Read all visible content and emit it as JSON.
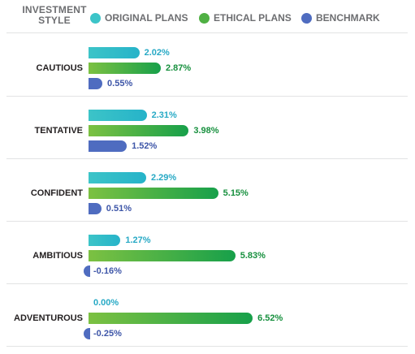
{
  "chart_data": {
    "type": "bar",
    "orientation": "horizontal",
    "header": "INVESTMENT STYLE",
    "categories": [
      "CAUTIOUS",
      "TENTATIVE",
      "CONFIDENT",
      "AMBITIOUS",
      "ADVENTUROUS"
    ],
    "series": [
      {
        "name": "ORIGINAL PLANS",
        "color": "#3cc4c8",
        "color_end": "#26b3c9",
        "label_color": "#27a9c5",
        "values": [
          2.02,
          2.31,
          2.29,
          1.27,
          0.0
        ],
        "labels": [
          "2.02%",
          "2.31%",
          "2.29%",
          "1.27%",
          "0.00%"
        ]
      },
      {
        "name": "ETHICAL PLANS",
        "color": "#7cc142",
        "color_end": "#17a04a",
        "label_color": "#17903e",
        "values": [
          2.87,
          3.98,
          5.15,
          5.83,
          6.52
        ],
        "labels": [
          "2.87%",
          "3.98%",
          "5.15%",
          "5.83%",
          "6.52%"
        ]
      },
      {
        "name": "BENCHMARK",
        "color": "#4f6cc0",
        "color_end": "#4f6cc0",
        "label_color": "#3e56a8",
        "values": [
          0.55,
          1.52,
          0.51,
          -0.16,
          -0.25
        ],
        "labels": [
          "0.55%",
          "1.52%",
          "0.51%",
          "-0.16%",
          "-0.25%"
        ]
      }
    ],
    "grid": false,
    "legend_position": "top"
  }
}
